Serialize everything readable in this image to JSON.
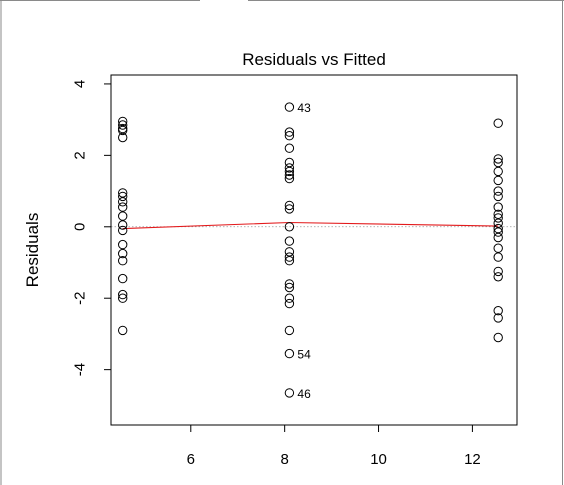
{
  "chart_data": {
    "type": "scatter",
    "title": "Residuals vs Fitted",
    "xlabel": "",
    "ylabel": "Residuals",
    "xlim": [
      4.3,
      12.95
    ],
    "ylim": [
      -5.55,
      4.25
    ],
    "x_ticks": [
      "6",
      "8",
      "10",
      "12"
    ],
    "y_ticks": [
      "-4",
      "-2",
      "0",
      "2",
      "4"
    ],
    "grid": false,
    "colors": {
      "points": "#000000",
      "smooth": "#e31a1c",
      "reference": "#999999",
      "frame_edge": "#8a8a8a"
    },
    "points": [
      {
        "x": 4.55,
        "y": 2.95
      },
      {
        "x": 4.55,
        "y": 2.85
      },
      {
        "x": 4.55,
        "y": 2.75
      },
      {
        "x": 4.55,
        "y": 2.7
      },
      {
        "x": 4.55,
        "y": 2.5
      },
      {
        "x": 4.55,
        "y": 0.95
      },
      {
        "x": 4.55,
        "y": 0.85
      },
      {
        "x": 4.55,
        "y": 0.7
      },
      {
        "x": 4.55,
        "y": 0.55
      },
      {
        "x": 4.55,
        "y": 0.3
      },
      {
        "x": 4.55,
        "y": 0.05
      },
      {
        "x": 4.55,
        "y": -0.1
      },
      {
        "x": 4.55,
        "y": -0.5
      },
      {
        "x": 4.55,
        "y": -0.75
      },
      {
        "x": 4.55,
        "y": -0.95
      },
      {
        "x": 4.55,
        "y": -1.45
      },
      {
        "x": 4.55,
        "y": -1.9
      },
      {
        "x": 4.55,
        "y": -2.0
      },
      {
        "x": 4.55,
        "y": -2.9
      },
      {
        "x": 8.1,
        "y": 3.35
      },
      {
        "x": 8.1,
        "y": 2.65
      },
      {
        "x": 8.1,
        "y": 2.55
      },
      {
        "x": 8.1,
        "y": 2.2
      },
      {
        "x": 8.1,
        "y": 1.8
      },
      {
        "x": 8.1,
        "y": 1.65
      },
      {
        "x": 8.1,
        "y": 1.55
      },
      {
        "x": 8.1,
        "y": 1.45
      },
      {
        "x": 8.1,
        "y": 1.35
      },
      {
        "x": 8.1,
        "y": 0.6
      },
      {
        "x": 8.1,
        "y": 0.5
      },
      {
        "x": 8.1,
        "y": 0.0
      },
      {
        "x": 8.1,
        "y": -0.4
      },
      {
        "x": 8.1,
        "y": -0.7
      },
      {
        "x": 8.1,
        "y": -0.85
      },
      {
        "x": 8.1,
        "y": -0.95
      },
      {
        "x": 8.1,
        "y": -1.6
      },
      {
        "x": 8.1,
        "y": -1.7
      },
      {
        "x": 8.1,
        "y": -2.0
      },
      {
        "x": 8.1,
        "y": -2.15
      },
      {
        "x": 8.1,
        "y": -2.9
      },
      {
        "x": 8.1,
        "y": -3.55
      },
      {
        "x": 8.1,
        "y": -4.65
      },
      {
        "x": 12.55,
        "y": 2.9
      },
      {
        "x": 12.55,
        "y": 1.9
      },
      {
        "x": 12.55,
        "y": 1.8
      },
      {
        "x": 12.55,
        "y": 1.55
      },
      {
        "x": 12.55,
        "y": 1.3
      },
      {
        "x": 12.55,
        "y": 1.0
      },
      {
        "x": 12.55,
        "y": 0.85
      },
      {
        "x": 12.55,
        "y": 0.55
      },
      {
        "x": 12.55,
        "y": 0.35
      },
      {
        "x": 12.55,
        "y": 0.25
      },
      {
        "x": 12.55,
        "y": 0.1
      },
      {
        "x": 12.55,
        "y": -0.05
      },
      {
        "x": 12.55,
        "y": -0.15
      },
      {
        "x": 12.55,
        "y": -0.3
      },
      {
        "x": 12.55,
        "y": -0.6
      },
      {
        "x": 12.55,
        "y": -0.85
      },
      {
        "x": 12.55,
        "y": -1.25
      },
      {
        "x": 12.55,
        "y": -1.4
      },
      {
        "x": 12.55,
        "y": -2.35
      },
      {
        "x": 12.55,
        "y": -2.55
      },
      {
        "x": 12.55,
        "y": -3.1
      }
    ],
    "labeled_points": [
      {
        "label": "43",
        "x": 8.1,
        "y": 3.35
      },
      {
        "label": "54",
        "x": 8.1,
        "y": -3.55
      },
      {
        "label": "46",
        "x": 8.1,
        "y": -4.65
      }
    ],
    "smooth_line": [
      {
        "x": 4.55,
        "y": -0.05
      },
      {
        "x": 8.1,
        "y": 0.12
      },
      {
        "x": 12.55,
        "y": 0.02
      }
    ],
    "reference_line_y": 0
  }
}
